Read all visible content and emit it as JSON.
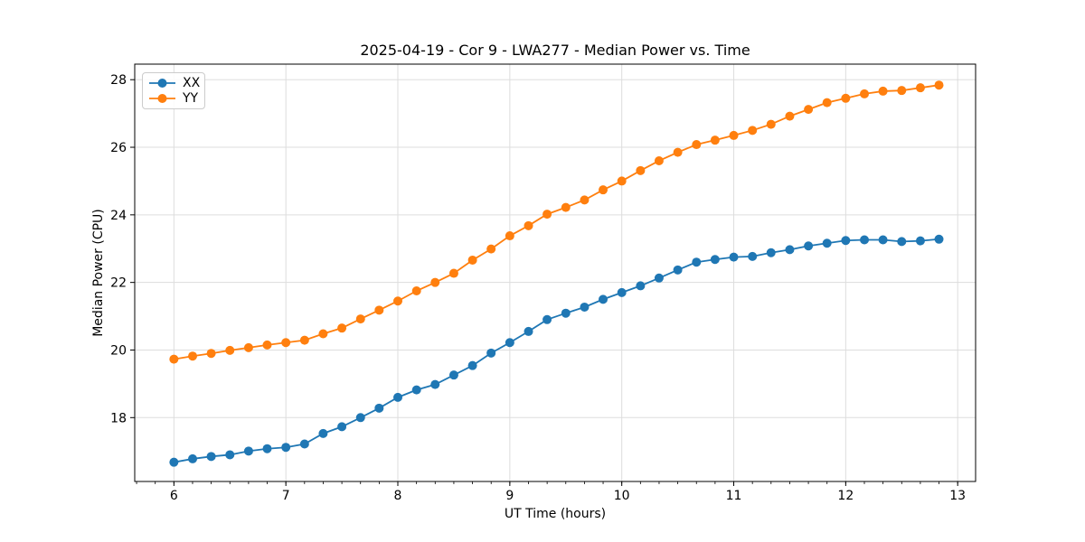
{
  "chart_data": {
    "type": "line",
    "title": "2025-04-19 - Cor 9 - LWA277 - Median Power vs. Time",
    "xlabel": "UT Time (hours)",
    "ylabel": "Median Power (CPU)",
    "xlim": [
      5.65,
      13.16
    ],
    "ylim": [
      16.11,
      28.46
    ],
    "xticks": [
      6,
      7,
      8,
      9,
      10,
      11,
      12,
      13
    ],
    "yticks": [
      18,
      20,
      22,
      24,
      26,
      28
    ],
    "x_minor_step": 0.166667,
    "grid": true,
    "grid_color": "#dddddd",
    "legend_position": "upper-left",
    "marker": "circle",
    "x": [
      6.0,
      6.167,
      6.333,
      6.5,
      6.667,
      6.833,
      7.0,
      7.167,
      7.333,
      7.5,
      7.667,
      7.833,
      8.0,
      8.167,
      8.333,
      8.5,
      8.667,
      8.833,
      9.0,
      9.167,
      9.333,
      9.5,
      9.667,
      9.833,
      10.0,
      10.167,
      10.333,
      10.5,
      10.667,
      10.833,
      11.0,
      11.167,
      11.333,
      11.5,
      11.667,
      11.833,
      12.0,
      12.167,
      12.333,
      12.5,
      12.667,
      12.833
    ],
    "series": [
      {
        "name": "XX",
        "color": "#1f77b4",
        "values": [
          16.68,
          16.78,
          16.85,
          16.9,
          17.01,
          17.08,
          17.12,
          17.22,
          17.53,
          17.73,
          18.0,
          18.28,
          18.6,
          18.82,
          18.98,
          19.26,
          19.54,
          19.91,
          20.22,
          20.55,
          20.9,
          21.09,
          21.27,
          21.5,
          21.7,
          21.9,
          22.13,
          22.37,
          22.6,
          22.68,
          22.75,
          22.77,
          22.88,
          22.97,
          23.08,
          23.16,
          23.24,
          23.26,
          23.26,
          23.21,
          23.23,
          23.28
        ]
      },
      {
        "name": "YY",
        "color": "#ff7f0e",
        "values": [
          19.73,
          19.82,
          19.9,
          19.99,
          20.07,
          20.15,
          20.22,
          20.29,
          20.48,
          20.65,
          20.92,
          21.18,
          21.45,
          21.75,
          22.0,
          22.27,
          22.66,
          22.99,
          23.38,
          23.68,
          24.02,
          24.22,
          24.44,
          24.74,
          25.0,
          25.31,
          25.6,
          25.85,
          26.08,
          26.21,
          26.35,
          26.5,
          26.68,
          26.92,
          27.12,
          27.32,
          27.45,
          27.58,
          27.66,
          27.68,
          27.76,
          27.84
        ]
      }
    ]
  }
}
